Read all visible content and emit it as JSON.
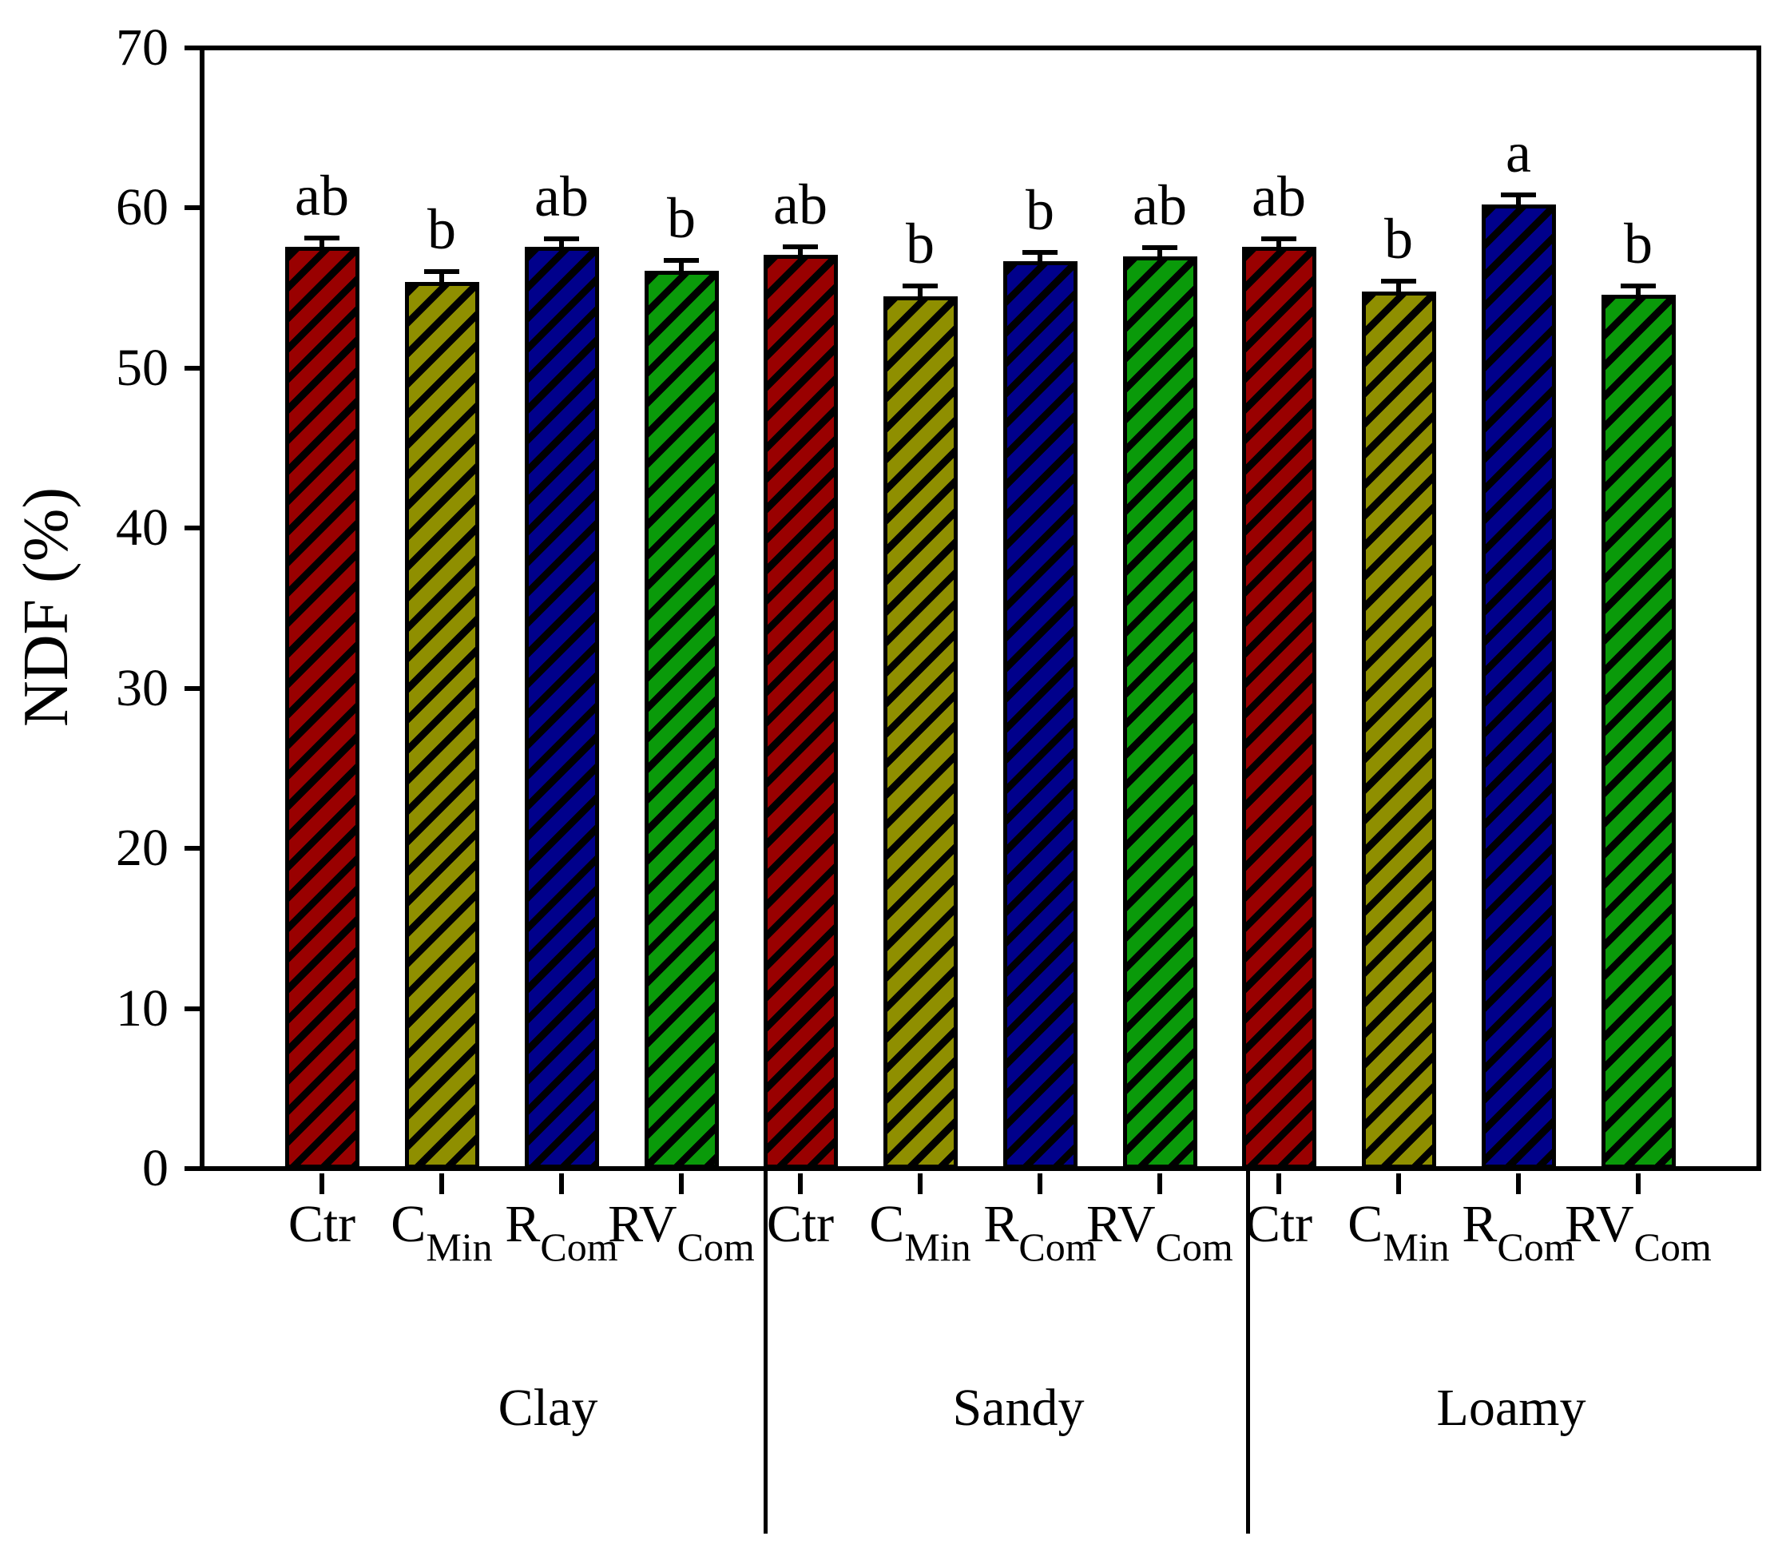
{
  "chart_data": {
    "type": "bar",
    "title": "",
    "ylabel": "NDF (%)",
    "xlabel": "",
    "ylim": [
      0,
      70
    ],
    "yticks": [
      0,
      10,
      20,
      30,
      40,
      50,
      60,
      70
    ],
    "grid": false,
    "legend": "none",
    "hatch": "diagonal-forward-slash",
    "groups": [
      "Clay",
      "Sandy",
      "Loamy"
    ],
    "treatments": [
      {
        "main": "Ctr",
        "sub": ""
      },
      {
        "main": "C",
        "sub": "Min"
      },
      {
        "main": "R",
        "sub": "Com"
      },
      {
        "main": "RV",
        "sub": "Com"
      }
    ],
    "bar_colors": [
      "#990000",
      "#8f8f00",
      "#00008b",
      "#0a9a0a"
    ],
    "bar_color_names": [
      "dark-red",
      "olive",
      "dark-blue",
      "green"
    ],
    "series": [
      {
        "group": "Clay",
        "values": [
          57.6,
          55.4,
          57.6,
          56.1
        ],
        "errors": [
          0.4,
          0.5,
          0.35,
          0.5
        ],
        "letters": [
          "ab",
          "b",
          "ab",
          "b"
        ]
      },
      {
        "group": "Sandy",
        "values": [
          57.1,
          54.5,
          56.7,
          57.0
        ],
        "errors": [
          0.35,
          0.5,
          0.4,
          0.4
        ],
        "letters": [
          "ab",
          "b",
          "b",
          "ab"
        ]
      },
      {
        "group": "Loamy",
        "values": [
          57.6,
          54.8,
          60.2,
          54.6
        ],
        "errors": [
          0.35,
          0.5,
          0.45,
          0.4
        ],
        "letters": [
          "ab",
          "b",
          "a",
          "b"
        ]
      }
    ]
  }
}
